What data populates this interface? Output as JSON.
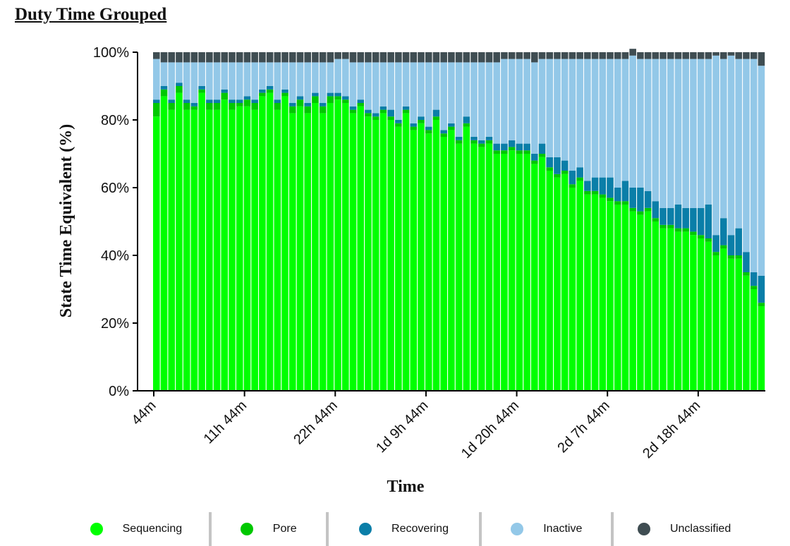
{
  "page": {
    "title": "Duty Time Grouped"
  },
  "chart_data": {
    "type": "bar",
    "stacked": true,
    "xlabel": "Time",
    "ylabel": "State Time Equivalent (%)",
    "ylim": [
      0,
      100
    ],
    "y_ticks": [
      "0%",
      "20%",
      "40%",
      "60%",
      "80%",
      "100%"
    ],
    "x_tick_labels": [
      "44m",
      "11h 44m",
      "22h 44m",
      "1d 9h 44m",
      "1d 20h 44m",
      "2d 7h 44m",
      "2d 18h 44m"
    ],
    "x_tick_bar_index": [
      0,
      12,
      24,
      36,
      48,
      60,
      72
    ],
    "legend_position": "bottom",
    "series": [
      {
        "name": "Sequencing",
        "color": "#00ff00",
        "values": [
          81,
          87,
          83,
          88,
          83,
          83,
          88,
          83,
          83,
          86,
          83,
          84,
          84,
          83,
          87,
          88,
          83,
          87,
          82,
          84,
          82,
          85,
          82,
          85,
          86,
          85,
          82,
          84,
          81,
          80,
          82,
          80,
          78,
          82,
          77,
          79,
          76,
          80,
          75,
          77,
          73,
          78,
          73,
          72,
          73,
          70,
          70,
          71,
          70,
          70,
          67,
          69,
          65,
          63,
          64,
          60,
          62,
          58,
          58,
          57,
          56,
          55,
          55,
          53,
          52,
          53,
          50,
          48,
          48,
          47,
          47,
          46,
          45,
          44,
          40,
          42,
          39,
          39,
          34,
          30,
          25
        ]
      },
      {
        "name": "Pore",
        "color": "#00c800",
        "values": [
          4,
          2,
          2,
          2,
          2,
          1,
          1,
          2,
          2,
          2,
          2,
          1,
          2,
          2,
          1,
          1,
          2,
          1,
          2,
          2,
          2,
          2,
          2,
          2,
          1,
          1,
          1,
          1,
          1,
          1,
          1,
          1,
          1,
          1,
          1,
          1,
          1,
          1,
          1,
          1,
          1,
          1,
          1,
          1,
          1,
          1,
          1,
          1,
          1,
          1,
          1,
          1,
          1,
          1,
          1,
          1,
          1,
          1,
          1,
          1,
          1,
          1,
          1,
          1,
          1,
          1,
          1,
          1,
          1,
          1,
          1,
          1,
          1,
          1,
          1,
          1,
          1,
          1,
          1,
          1,
          1
        ]
      },
      {
        "name": "Recovering",
        "color": "#0a7ea8",
        "values": [
          1,
          1,
          1,
          1,
          1,
          1,
          1,
          1,
          1,
          1,
          1,
          1,
          1,
          1,
          1,
          1,
          1,
          1,
          1,
          1,
          1,
          1,
          1,
          1,
          1,
          1,
          1,
          1,
          1,
          1,
          1,
          2,
          1,
          1,
          1,
          1,
          1,
          2,
          1,
          1,
          1,
          2,
          1,
          1,
          1,
          2,
          2,
          2,
          2,
          2,
          2,
          3,
          3,
          5,
          3,
          4,
          3,
          3,
          4,
          5,
          6,
          4,
          6,
          6,
          7,
          5,
          5,
          5,
          5,
          7,
          6,
          7,
          8,
          10,
          5,
          8,
          6,
          8,
          6,
          4,
          8
        ]
      },
      {
        "name": "Inactive",
        "color": "#93c8e8",
        "values": [
          12,
          7,
          11,
          6,
          11,
          12,
          7,
          11,
          11,
          8,
          11,
          11,
          10,
          11,
          8,
          7,
          11,
          8,
          12,
          10,
          12,
          9,
          12,
          9,
          10,
          11,
          13,
          11,
          14,
          15,
          13,
          14,
          17,
          13,
          18,
          16,
          19,
          14,
          20,
          18,
          22,
          16,
          22,
          23,
          22,
          24,
          25,
          24,
          25,
          25,
          27,
          25,
          29,
          29,
          30,
          33,
          32,
          36,
          35,
          35,
          35,
          38,
          36,
          39,
          38,
          39,
          42,
          44,
          44,
          43,
          44,
          44,
          44,
          43,
          53,
          47,
          53,
          50,
          57,
          63,
          62
        ]
      },
      {
        "name": "Unclassified",
        "color": "#3f4d52",
        "values": [
          2,
          3,
          3,
          3,
          3,
          3,
          3,
          3,
          3,
          3,
          3,
          3,
          3,
          3,
          3,
          3,
          3,
          3,
          3,
          3,
          3,
          3,
          3,
          3,
          2,
          2,
          3,
          3,
          3,
          3,
          3,
          3,
          3,
          3,
          3,
          3,
          3,
          3,
          3,
          3,
          3,
          3,
          3,
          3,
          3,
          3,
          2,
          2,
          2,
          2,
          3,
          2,
          2,
          2,
          2,
          2,
          2,
          2,
          2,
          2,
          2,
          2,
          2,
          2,
          2,
          2,
          2,
          2,
          2,
          2,
          2,
          2,
          2,
          2,
          1,
          2,
          1,
          2,
          2,
          2,
          4
        ]
      }
    ]
  }
}
